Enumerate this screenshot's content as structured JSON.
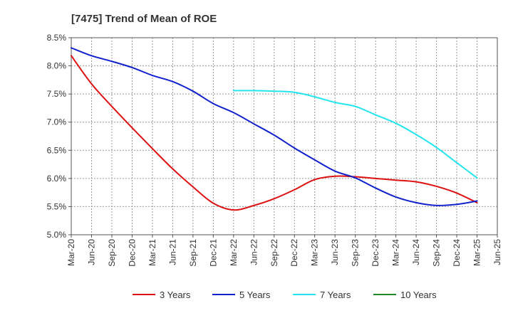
{
  "chart_data": {
    "type": "line",
    "title": "[7475]  Trend of Mean of ROE",
    "xlabel": "",
    "ylabel": "",
    "ylim": [
      5.0,
      8.5
    ],
    "yticks": [
      5.0,
      5.5,
      6.0,
      6.5,
      7.0,
      7.5,
      8.0,
      8.5
    ],
    "ytick_labels": [
      "5.0%",
      "5.5%",
      "6.0%",
      "6.5%",
      "7.0%",
      "7.5%",
      "8.0%",
      "8.5%"
    ],
    "x_tick_labels": [
      "Mar-20",
      "Jun-20",
      "Sep-20",
      "Dec-20",
      "Mar-21",
      "Jun-21",
      "Sep-21",
      "Dec-21",
      "Mar-22",
      "Jun-22",
      "Sep-22",
      "Dec-22",
      "Mar-23",
      "Jun-23",
      "Sep-23",
      "Dec-23",
      "Mar-24",
      "Jun-24",
      "Sep-24",
      "Dec-24",
      "Mar-25",
      "Jun-25"
    ],
    "grid": true,
    "legend_position": "bottom",
    "series": [
      {
        "name": "3 Years",
        "color": "#dd1111",
        "values": [
          8.18,
          7.68,
          7.28,
          6.9,
          6.53,
          6.17,
          5.85,
          5.56,
          5.44,
          5.52,
          5.64,
          5.8,
          5.98,
          6.04,
          6.03,
          6.0,
          5.97,
          5.94,
          5.86,
          5.74,
          5.57,
          null
        ]
      },
      {
        "name": "5 Years",
        "color": "#1122cc",
        "values": [
          8.32,
          8.18,
          8.08,
          7.97,
          7.83,
          7.72,
          7.55,
          7.33,
          7.17,
          6.97,
          6.77,
          6.54,
          6.33,
          6.13,
          6.01,
          5.83,
          5.67,
          5.57,
          5.52,
          5.54,
          5.6,
          null
        ]
      },
      {
        "name": "7 Years",
        "color": "#22e5ee",
        "values": [
          null,
          null,
          null,
          null,
          null,
          null,
          null,
          null,
          7.56,
          7.56,
          7.55,
          7.53,
          7.45,
          7.35,
          7.28,
          7.13,
          6.98,
          6.78,
          6.55,
          6.28,
          6.01,
          null
        ]
      },
      {
        "name": "10 Years",
        "color": "#228822",
        "values": [
          null,
          null,
          null,
          null,
          null,
          null,
          null,
          null,
          null,
          null,
          null,
          null,
          null,
          null,
          null,
          null,
          null,
          null,
          null,
          null,
          null,
          null
        ]
      }
    ]
  }
}
